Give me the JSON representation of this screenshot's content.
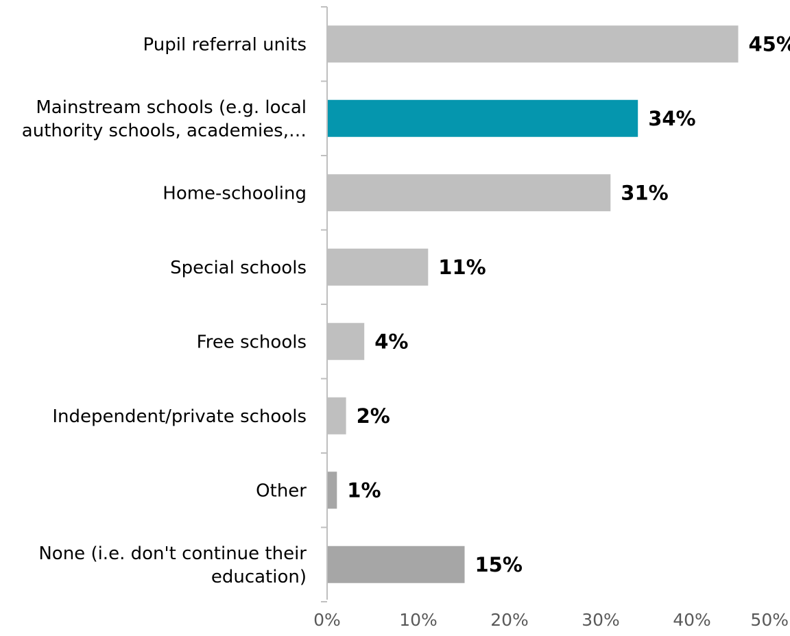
{
  "chart_data": {
    "type": "bar",
    "orientation": "horizontal",
    "title": "",
    "xlabel": "",
    "ylabel": "",
    "xlim": [
      0,
      50
    ],
    "x_ticks": [
      "0%",
      "10%",
      "20%",
      "30%",
      "40%",
      "50%"
    ],
    "grid": false,
    "legend": "none",
    "categories": [
      [
        "Pupil referral units"
      ],
      [
        "Mainstream schools (e.g. local",
        "authority schools, academies,…"
      ],
      [
        "Home-schooling"
      ],
      [
        "Special schools"
      ],
      [
        "Free schools"
      ],
      [
        "Independent/private schools"
      ],
      [
        "Other"
      ],
      [
        "None (i.e. don't continue their",
        "education)"
      ]
    ],
    "values": [
      45,
      34,
      31,
      11,
      4,
      2,
      1,
      15
    ],
    "value_labels": [
      "45%",
      "34%",
      "31%",
      "11%",
      "4%",
      "2%",
      "1%",
      "15%"
    ],
    "colors": [
      "#bfbfbf",
      "#0596ae",
      "#bfbfbf",
      "#bfbfbf",
      "#bfbfbf",
      "#bfbfbf",
      "#a6a6a6",
      "#a6a6a6"
    ]
  }
}
